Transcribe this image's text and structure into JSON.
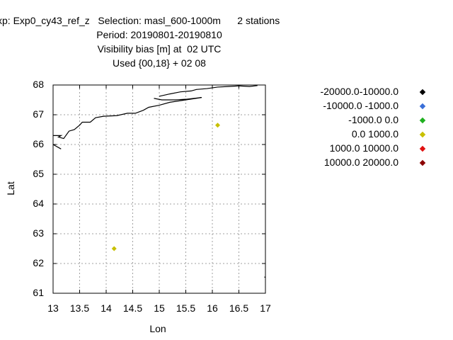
{
  "title_lines": [
    "xp: Exp0_cy43_ref_z   Selection: masl_600-1000m      2 stations",
    "Period: 20190801-20190810",
    "Visibility bias [m] at  02 UTC",
    "Used {00,18} + 02 08"
  ],
  "chart_data": {
    "type": "scatter",
    "xlabel": "Lon",
    "ylabel": "Lat",
    "xlim": [
      13,
      17
    ],
    "ylim": [
      61,
      68
    ],
    "grid": true,
    "legend_position": "right",
    "x_ticks": [
      "13",
      "13.5",
      "14",
      "14.5",
      "15",
      "15.5",
      "16",
      "16.5",
      "17"
    ],
    "y_ticks": [
      "61",
      "62",
      "63",
      "64",
      "65",
      "66",
      "67",
      "68"
    ],
    "legend": [
      {
        "label": "-20000.0-10000.0",
        "color": "#000000"
      },
      {
        "label": "-10000.0 -1000.0",
        "color": "#3a6fd8"
      },
      {
        "label": "-1000.0 0.0",
        "color": "#1fb01f"
      },
      {
        "label": "0.0 1000.0",
        "color": "#c8c000"
      },
      {
        "label": "1000.0 10000.0",
        "color": "#e01010"
      },
      {
        "label": "10000.0 20000.0",
        "color": "#8b0000"
      }
    ],
    "points": [
      {
        "x": 16.1,
        "y": 66.65,
        "color": "#c8c000"
      },
      {
        "x": 14.15,
        "y": 62.5,
        "color": "#c8c000"
      }
    ],
    "coastlines": [
      [
        [
          13.0,
          66.3
        ],
        [
          13.15,
          66.3
        ],
        [
          13.1,
          66.25
        ],
        [
          13.2,
          66.2
        ],
        [
          13.3,
          66.45
        ],
        [
          13.4,
          66.5
        ],
        [
          13.5,
          66.65
        ],
        [
          13.55,
          66.75
        ],
        [
          13.7,
          66.75
        ],
        [
          13.8,
          66.9
        ],
        [
          13.95,
          66.95
        ],
        [
          14.2,
          66.97
        ],
        [
          14.4,
          67.05
        ],
        [
          14.55,
          67.05
        ],
        [
          14.7,
          67.15
        ],
        [
          14.8,
          67.25
        ],
        [
          15.0,
          67.32
        ],
        [
          15.2,
          67.42
        ],
        [
          15.5,
          67.5
        ],
        [
          15.8,
          67.58
        ],
        [
          15.5,
          67.52
        ],
        [
          15.3,
          67.5
        ],
        [
          15.05,
          67.5
        ],
        [
          14.9,
          67.55
        ]
      ],
      [
        [
          15.0,
          67.62
        ],
        [
          15.2,
          67.7
        ],
        [
          15.4,
          67.77
        ],
        [
          15.6,
          67.8
        ],
        [
          15.7,
          67.85
        ],
        [
          15.9,
          67.88
        ],
        [
          16.1,
          67.93
        ],
        [
          16.3,
          67.95
        ],
        [
          16.5,
          67.97
        ],
        [
          16.7,
          67.95
        ],
        [
          16.85,
          67.98
        ]
      ],
      [
        [
          13.0,
          66.0
        ],
        [
          13.05,
          65.95
        ],
        [
          13.1,
          65.9
        ],
        [
          13.15,
          65.85
        ]
      ],
      [
        [
          16.98,
          61.55
        ],
        [
          17.0,
          61.53
        ]
      ]
    ]
  }
}
